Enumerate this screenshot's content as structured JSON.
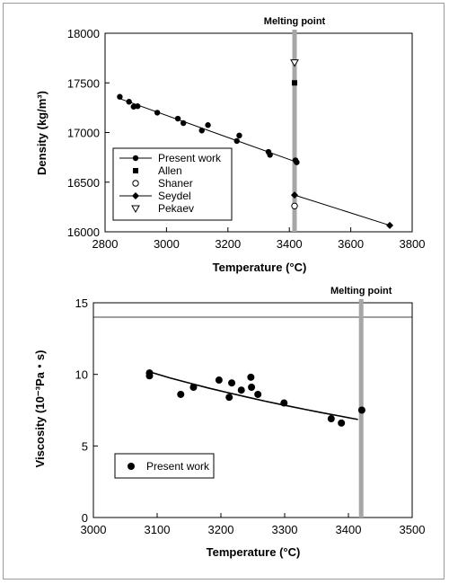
{
  "chart_data": [
    {
      "type": "scatter",
      "xlabel": "Temperature (°C)",
      "ylabel": "Density (kg/m³)",
      "xlim": [
        2800,
        3800
      ],
      "ylim": [
        16000,
        18000
      ],
      "x_ticks": [
        "2800",
        "3000",
        "3200",
        "3400",
        "3600",
        "3800"
      ],
      "y_ticks": [
        "16000",
        "16500",
        "17000",
        "17500",
        "18000"
      ],
      "annotation": "Melting point",
      "melting_point_x": 3417,
      "legend_position": "bottom-left",
      "series": [
        {
          "name": "Present work",
          "marker": "circle-filled",
          "x": [
            2848,
            2878,
            2893,
            2906,
            2970,
            3037,
            3055,
            3115,
            3135,
            3229,
            3237,
            3332,
            3337,
            3420,
            3424
          ],
          "y": [
            17360,
            17310,
            17260,
            17265,
            17200,
            17140,
            17095,
            17020,
            17075,
            16915,
            16970,
            16805,
            16775,
            16720,
            16700
          ],
          "fit": {
            "x": [
              2840,
              3430
            ],
            "y": [
              17350,
              16695
            ]
          }
        },
        {
          "name": "Allen",
          "marker": "square-filled",
          "x": [
            3417
          ],
          "y": [
            17500
          ]
        },
        {
          "name": "Shaner",
          "marker": "circle-open",
          "x": [
            3417
          ],
          "y": [
            16260
          ]
        },
        {
          "name": "Seydel",
          "marker": "diamond-filled",
          "x": [
            3417,
            3727
          ],
          "y": [
            16370,
            16065
          ],
          "fit": {
            "x": [
              3417,
              3727
            ],
            "y": [
              16370,
              16065
            ]
          }
        },
        {
          "name": "Pekaev",
          "marker": "triangle-down-open",
          "x": [
            3417
          ],
          "y": [
            17700
          ]
        }
      ]
    },
    {
      "type": "scatter",
      "xlabel": "Temperature (°C)",
      "ylabel": "Viscosity (10⁻³Pa・s)",
      "xlim": [
        3000,
        3500
      ],
      "ylim": [
        0,
        15
      ],
      "x_ticks": [
        "3000",
        "3100",
        "3200",
        "3300",
        "3400",
        "3500"
      ],
      "y_ticks": [
        "0",
        "5",
        "10",
        "15"
      ],
      "annotation": "Melting point",
      "melting_point_x": 3420,
      "legend_position": "bottom-left",
      "series": [
        {
          "name": "Present work",
          "marker": "circle-filled",
          "x": [
            3088,
            3088,
            3137,
            3157,
            3197,
            3213,
            3217,
            3232,
            3247,
            3248,
            3258,
            3299,
            3373,
            3389,
            3421
          ],
          "y": [
            10.1,
            9.9,
            8.6,
            9.1,
            9.6,
            8.4,
            9.4,
            8.9,
            9.8,
            9.1,
            8.6,
            8.0,
            6.9,
            6.6,
            7.5
          ],
          "fit": {
            "x": [
              3090,
              3120,
              3150,
              3180,
              3210,
              3240,
              3270,
              3300,
              3330,
              3360,
              3390,
              3415
            ],
            "y": [
              10.15,
              9.75,
              9.4,
              9.05,
              8.73,
              8.42,
              8.12,
              7.84,
              7.57,
              7.31,
              7.06,
              6.85
            ]
          }
        }
      ]
    }
  ]
}
